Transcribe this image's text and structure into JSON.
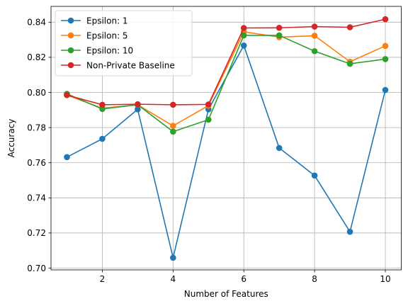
{
  "chart_data": {
    "type": "line",
    "title": "",
    "xlabel": "Number of Features",
    "ylabel": "Accuracy",
    "xlim": [
      0.55,
      10.45
    ],
    "ylim": [
      0.699,
      0.849
    ],
    "xticks": [
      2,
      4,
      6,
      8,
      10
    ],
    "yticks": [
      0.7,
      0.72,
      0.74,
      0.76,
      0.78,
      0.8,
      0.82,
      0.84
    ],
    "grid": true,
    "legend_position": "upper-left",
    "x": [
      1,
      2,
      3,
      4,
      5,
      6,
      7,
      8,
      9,
      10
    ],
    "series": [
      {
        "name": "Epsilon: 1",
        "color": "#1f77b4",
        "values": [
          0.7632,
          0.7736,
          0.7904,
          0.7059,
          0.7904,
          0.8267,
          0.7684,
          0.7527,
          0.7207,
          0.8014
        ]
      },
      {
        "name": "Epsilon: 5",
        "color": "#ff7f0e",
        "values": [
          0.7985,
          0.791,
          0.793,
          0.781,
          0.7925,
          0.8345,
          0.8315,
          0.8323,
          0.8175,
          0.8265
        ]
      },
      {
        "name": "Epsilon: 10",
        "color": "#2ca02c",
        "values": [
          0.7992,
          0.7906,
          0.793,
          0.7777,
          0.7845,
          0.8325,
          0.8325,
          0.8235,
          0.8163,
          0.819
        ]
      },
      {
        "name": "Non-Private Baseline",
        "color": "#d62728",
        "values": [
          0.7985,
          0.793,
          0.7933,
          0.793,
          0.7932,
          0.8367,
          0.8368,
          0.8375,
          0.8371,
          0.8417
        ]
      }
    ]
  }
}
